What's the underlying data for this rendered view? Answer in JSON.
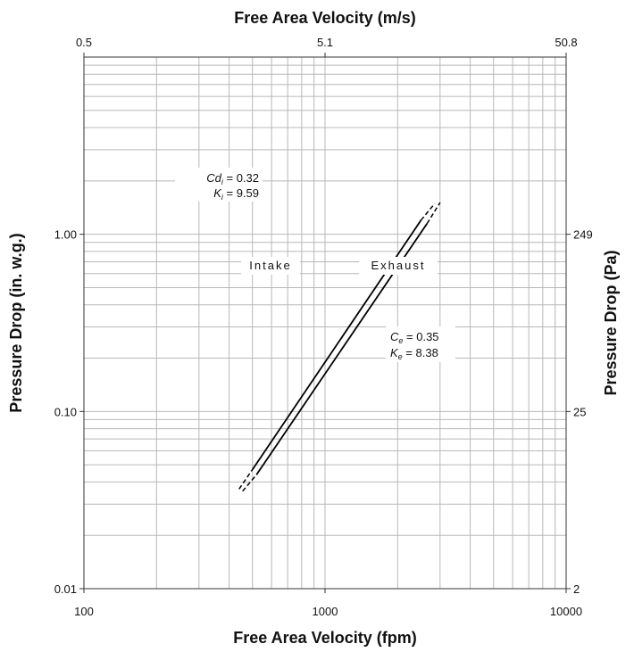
{
  "chart_data": {
    "type": "line",
    "x_scale": "log",
    "y_scale": "log",
    "xlabel": "Free Area Velocity (fpm)",
    "x2label": "Free Area Velocity (m/s)",
    "ylabel": "Pressure Drop (in. w.g.)",
    "y2label": "Pressure Drop (Pa)",
    "xlim": [
      100,
      10000
    ],
    "ylim": [
      0.01,
      10
    ],
    "grid": true,
    "x_ticks": [
      {
        "value": 100,
        "label": "100"
      },
      {
        "value": 1000,
        "label": "1000"
      },
      {
        "value": 10000,
        "label": "10000"
      }
    ],
    "x2_ticks": [
      {
        "value": 100,
        "label": "0.5"
      },
      {
        "value": 1000,
        "label": "5.1"
      },
      {
        "value": 10000,
        "label": "50.8"
      }
    ],
    "y_ticks": [
      {
        "value": 0.01,
        "label": "0.01"
      },
      {
        "value": 0.1,
        "label": "0.10"
      },
      {
        "value": 1,
        "label": "1.00"
      }
    ],
    "y2_ticks": [
      {
        "value": 0.01,
        "label": "2"
      },
      {
        "value": 0.1,
        "label": "25"
      },
      {
        "value": 1,
        "label": "249"
      }
    ],
    "series": [
      {
        "name": "Intake",
        "solid": {
          "x": [
            500,
            2500
          ],
          "y": [
            0.047,
            1.2
          ]
        },
        "dashed": [
          {
            "x": [
              440,
              500
            ],
            "y": [
              0.0365,
              0.047
            ]
          },
          {
            "x": [
              2500,
              2850
            ],
            "y": [
              1.2,
              1.49
            ]
          }
        ]
      },
      {
        "name": "Exhaust",
        "solid": {
          "x": [
            520,
            2650
          ],
          "y": [
            0.044,
            1.15
          ]
        },
        "dashed": [
          {
            "x": [
              455,
              520
            ],
            "y": [
              0.0355,
              0.044
            ]
          },
          {
            "x": [
              2650,
              3000
            ],
            "y": [
              1.15,
              1.51
            ]
          }
        ]
      }
    ],
    "annotations": {
      "intake_label": "Intake",
      "exhaust_label": "Exhaust",
      "intake_cd_sym": "Cd",
      "intake_cd_sub": "i",
      "intake_cd_val": " = 0.32",
      "intake_k_sym": "K",
      "intake_k_sub": "i",
      "intake_k_val": " = 9.59",
      "exhaust_c_sym": "C",
      "exhaust_c_sub": "e",
      "exhaust_c_val": " = 0.35",
      "exhaust_k_sym": "K",
      "exhaust_k_sub": "e",
      "exhaust_k_val": " = 8.38"
    }
  }
}
